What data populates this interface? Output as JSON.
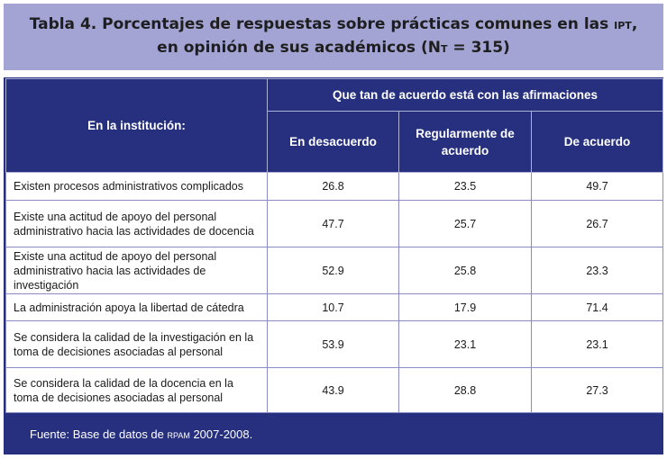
{
  "title": {
    "line1_main": "Tabla 4. Porcentajes de respuestas sobre prácticas comunes en las ",
    "line1_abbr": "IPT",
    "line1_end": ",",
    "line2_main": "en opinión de  sus académicos (N",
    "line2_sub": "T",
    "line2_end": " = 315)"
  },
  "table": {
    "row_header": "En la institución:",
    "group_header": "Que tan de acuerdo está con las afirmaciones",
    "columns": [
      "En desacuerdo",
      "Regularmente de acuerdo",
      "De acuerdo"
    ],
    "rows": [
      {
        "label": "Existen procesos administrativos complicados",
        "values": [
          "26.8",
          "23.5",
          "49.7"
        ]
      },
      {
        "label": "Existe una actitud de apoyo del  personal administrativo hacia las actividades de docencia",
        "values": [
          "47.7",
          "25.7",
          "26.7"
        ]
      },
      {
        "label": "Existe una actitud de apoyo del  personal administrativo hacia las actividades de investigación",
        "values": [
          "52.9",
          "25.8",
          "23.3"
        ]
      },
      {
        "label": "La administración apoya la libertad de cátedra",
        "values": [
          "10.7",
          "17.9",
          "71.4"
        ]
      },
      {
        "label": "Se considera la calidad de la investigación en la toma de decisiones  asociadas al personal",
        "values": [
          "53.9",
          "23.1",
          "23.1"
        ]
      },
      {
        "label": "Se considera la calidad de la docencia en la toma de decisiones  asociadas al personal",
        "values": [
          "43.9",
          "28.8",
          "27.3"
        ]
      }
    ]
  },
  "footer": {
    "prefix": "Fuente: Base de datos de ",
    "abbr": "RPAM",
    "suffix": " 2007-2008."
  },
  "colors": {
    "header_bg": "#26307e",
    "title_bg": "#a3a4d4",
    "cell_border": "#8a8cc4"
  }
}
